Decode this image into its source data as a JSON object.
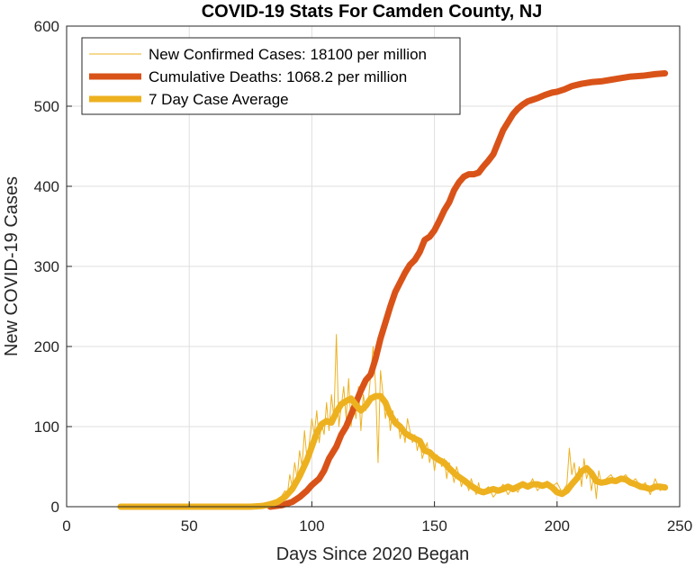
{
  "chart_data": {
    "type": "line",
    "title": "COVID-19 Stats For Camden County, NJ",
    "xlabel": "Days Since 2020 Began",
    "ylabel": "New COVID-19 Cases",
    "xlim": [
      0,
      250
    ],
    "ylim": [
      0,
      600
    ],
    "xticks": [
      0,
      50,
      100,
      150,
      200,
      250
    ],
    "yticks": [
      0,
      100,
      200,
      300,
      400,
      500,
      600
    ],
    "grid": true,
    "legend_position": "top-left",
    "series": [
      {
        "name": "New Confirmed Cases: 18100 per million",
        "color": "#EDB120",
        "style": "thin",
        "points": [
          [
            22,
            0
          ],
          [
            40,
            0
          ],
          [
            60,
            0
          ],
          [
            75,
            0
          ],
          [
            80,
            0
          ],
          [
            83,
            2
          ],
          [
            85,
            5
          ],
          [
            87,
            10
          ],
          [
            89,
            20
          ],
          [
            90,
            15
          ],
          [
            91,
            40
          ],
          [
            92,
            25
          ],
          [
            93,
            55
          ],
          [
            94,
            35
          ],
          [
            95,
            70
          ],
          [
            96,
            50
          ],
          [
            97,
            95
          ],
          [
            98,
            60
          ],
          [
            99,
            80
          ],
          [
            100,
            110
          ],
          [
            101,
            90
          ],
          [
            102,
            120
          ],
          [
            103,
            80
          ],
          [
            104,
            105
          ],
          [
            105,
            90
          ],
          [
            106,
            130
          ],
          [
            107,
            95
          ],
          [
            108,
            140
          ],
          [
            109,
            110
          ],
          [
            110,
            215
          ],
          [
            111,
            100
          ],
          [
            112,
            125
          ],
          [
            113,
            150
          ],
          [
            114,
            110
          ],
          [
            115,
            160
          ],
          [
            116,
            100
          ],
          [
            117,
            130
          ],
          [
            118,
            110
          ],
          [
            119,
            150
          ],
          [
            120,
            95
          ],
          [
            121,
            140
          ],
          [
            122,
            120
          ],
          [
            123,
            130
          ],
          [
            124,
            165
          ],
          [
            125,
            200
          ],
          [
            126,
            150
          ],
          [
            127,
            55
          ],
          [
            128,
            170
          ],
          [
            129,
            140
          ],
          [
            130,
            110
          ],
          [
            131,
            130
          ],
          [
            132,
            95
          ],
          [
            133,
            120
          ],
          [
            134,
            100
          ],
          [
            135,
            110
          ],
          [
            136,
            85
          ],
          [
            137,
            100
          ],
          [
            138,
            80
          ],
          [
            139,
            110
          ],
          [
            140,
            95
          ],
          [
            141,
            80
          ],
          [
            142,
            90
          ],
          [
            143,
            70
          ],
          [
            144,
            85
          ],
          [
            145,
            60
          ],
          [
            146,
            70
          ],
          [
            147,
            80
          ],
          [
            148,
            55
          ],
          [
            149,
            70
          ],
          [
            150,
            45
          ],
          [
            151,
            65
          ],
          [
            152,
            60
          ],
          [
            153,
            50
          ],
          [
            154,
            60
          ],
          [
            155,
            35
          ],
          [
            156,
            55
          ],
          [
            157,
            45
          ],
          [
            158,
            30
          ],
          [
            159,
            50
          ],
          [
            160,
            40
          ],
          [
            161,
            25
          ],
          [
            162,
            35
          ],
          [
            163,
            30
          ],
          [
            164,
            20
          ],
          [
            165,
            35
          ],
          [
            166,
            25
          ],
          [
            167,
            15
          ],
          [
            168,
            30
          ],
          [
            169,
            15
          ],
          [
            170,
            20
          ],
          [
            172,
            25
          ],
          [
            174,
            12
          ],
          [
            176,
            20
          ],
          [
            178,
            28
          ],
          [
            180,
            15
          ],
          [
            182,
            25
          ],
          [
            184,
            18
          ],
          [
            186,
            30
          ],
          [
            188,
            22
          ],
          [
            190,
            35
          ],
          [
            192,
            20
          ],
          [
            194,
            28
          ],
          [
            196,
            32
          ],
          [
            198,
            25
          ],
          [
            200,
            30
          ],
          [
            202,
            18
          ],
          [
            204,
            28
          ],
          [
            205,
            73
          ],
          [
            206,
            40
          ],
          [
            207,
            55
          ],
          [
            208,
            30
          ],
          [
            209,
            50
          ],
          [
            210,
            25
          ],
          [
            211,
            60
          ],
          [
            212,
            35
          ],
          [
            213,
            45
          ],
          [
            214,
            20
          ],
          [
            215,
            40
          ],
          [
            216,
            10
          ],
          [
            217,
            45
          ],
          [
            218,
            30
          ],
          [
            220,
            35
          ],
          [
            222,
            40
          ],
          [
            224,
            30
          ],
          [
            226,
            35
          ],
          [
            228,
            40
          ],
          [
            230,
            30
          ],
          [
            232,
            35
          ],
          [
            234,
            25
          ],
          [
            236,
            30
          ],
          [
            238,
            15
          ],
          [
            240,
            35
          ],
          [
            242,
            20
          ],
          [
            244,
            25
          ]
        ]
      },
      {
        "name": "Cumulative Deaths: 1068.2 per million",
        "color": "#D95319",
        "style": "thick",
        "points": [
          [
            83,
            0
          ],
          [
            88,
            2
          ],
          [
            92,
            6
          ],
          [
            95,
            12
          ],
          [
            98,
            20
          ],
          [
            100,
            27
          ],
          [
            103,
            35
          ],
          [
            105,
            45
          ],
          [
            107,
            60
          ],
          [
            110,
            75
          ],
          [
            112,
            90
          ],
          [
            114,
            100
          ],
          [
            116,
            115
          ],
          [
            118,
            130
          ],
          [
            120,
            145
          ],
          [
            122,
            158
          ],
          [
            124,
            165
          ],
          [
            126,
            185
          ],
          [
            128,
            210
          ],
          [
            130,
            230
          ],
          [
            132,
            250
          ],
          [
            134,
            268
          ],
          [
            136,
            280
          ],
          [
            138,
            292
          ],
          [
            140,
            302
          ],
          [
            142,
            308
          ],
          [
            144,
            318
          ],
          [
            146,
            333
          ],
          [
            148,
            337
          ],
          [
            150,
            345
          ],
          [
            152,
            357
          ],
          [
            154,
            370
          ],
          [
            156,
            380
          ],
          [
            158,
            395
          ],
          [
            160,
            405
          ],
          [
            162,
            412
          ],
          [
            164,
            415
          ],
          [
            166,
            415
          ],
          [
            168,
            417
          ],
          [
            170,
            425
          ],
          [
            172,
            432
          ],
          [
            174,
            440
          ],
          [
            176,
            455
          ],
          [
            178,
            470
          ],
          [
            180,
            480
          ],
          [
            182,
            490
          ],
          [
            184,
            497
          ],
          [
            186,
            502
          ],
          [
            188,
            506
          ],
          [
            190,
            508
          ],
          [
            192,
            510
          ],
          [
            195,
            514
          ],
          [
            198,
            517
          ],
          [
            200,
            518
          ],
          [
            203,
            521
          ],
          [
            206,
            525
          ],
          [
            210,
            528
          ],
          [
            214,
            530
          ],
          [
            218,
            531
          ],
          [
            222,
            533
          ],
          [
            226,
            535
          ],
          [
            230,
            537
          ],
          [
            235,
            538
          ],
          [
            240,
            540
          ],
          [
            244,
            541
          ]
        ]
      },
      {
        "name": "7 Day Case Average",
        "color": "#EDB120",
        "style": "thick",
        "points": [
          [
            22,
            0
          ],
          [
            40,
            0
          ],
          [
            60,
            0
          ],
          [
            75,
            0
          ],
          [
            80,
            1
          ],
          [
            83,
            3
          ],
          [
            86,
            6
          ],
          [
            89,
            12
          ],
          [
            92,
            22
          ],
          [
            95,
            38
          ],
          [
            98,
            58
          ],
          [
            100,
            75
          ],
          [
            102,
            92
          ],
          [
            104,
            103
          ],
          [
            106,
            107
          ],
          [
            108,
            105
          ],
          [
            110,
            118
          ],
          [
            112,
            128
          ],
          [
            114,
            132
          ],
          [
            116,
            135
          ],
          [
            118,
            127
          ],
          [
            120,
            120
          ],
          [
            122,
            126
          ],
          [
            124,
            135
          ],
          [
            126,
            138
          ],
          [
            128,
            138
          ],
          [
            130,
            130
          ],
          [
            132,
            115
          ],
          [
            134,
            105
          ],
          [
            136,
            100
          ],
          [
            138,
            92
          ],
          [
            140,
            88
          ],
          [
            142,
            85
          ],
          [
            144,
            82
          ],
          [
            146,
            70
          ],
          [
            148,
            68
          ],
          [
            150,
            62
          ],
          [
            152,
            58
          ],
          [
            154,
            55
          ],
          [
            156,
            48
          ],
          [
            158,
            42
          ],
          [
            160,
            37
          ],
          [
            162,
            33
          ],
          [
            164,
            28
          ],
          [
            166,
            24
          ],
          [
            168,
            20
          ],
          [
            170,
            18
          ],
          [
            172,
            20
          ],
          [
            174,
            22
          ],
          [
            176,
            20
          ],
          [
            178,
            22
          ],
          [
            180,
            25
          ],
          [
            182,
            22
          ],
          [
            184,
            25
          ],
          [
            186,
            28
          ],
          [
            188,
            25
          ],
          [
            190,
            28
          ],
          [
            192,
            28
          ],
          [
            194,
            26
          ],
          [
            196,
            28
          ],
          [
            198,
            24
          ],
          [
            200,
            18
          ],
          [
            202,
            16
          ],
          [
            204,
            20
          ],
          [
            206,
            28
          ],
          [
            208,
            35
          ],
          [
            210,
            44
          ],
          [
            212,
            48
          ],
          [
            214,
            42
          ],
          [
            216,
            32
          ],
          [
            218,
            30
          ],
          [
            220,
            31
          ],
          [
            222,
            33
          ],
          [
            224,
            32
          ],
          [
            226,
            35
          ],
          [
            228,
            34
          ],
          [
            230,
            30
          ],
          [
            232,
            28
          ],
          [
            234,
            25
          ],
          [
            236,
            24
          ],
          [
            238,
            22
          ],
          [
            240,
            25
          ],
          [
            242,
            25
          ],
          [
            244,
            24
          ]
        ]
      }
    ]
  }
}
